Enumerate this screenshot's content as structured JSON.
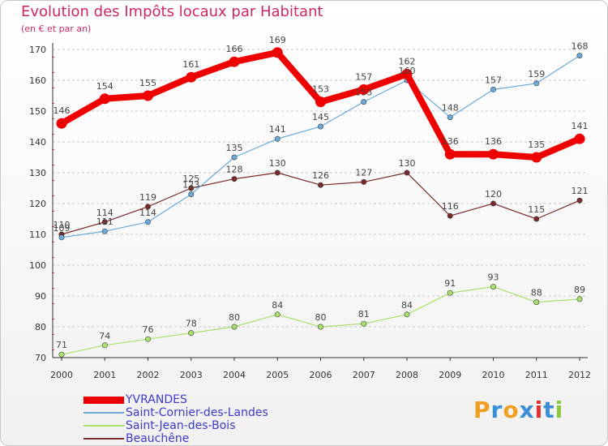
{
  "header": {
    "title": "Evolution des Impôts locaux par Habitant",
    "subtitle": "(en € et par an)"
  },
  "logo": {
    "letters": [
      "P",
      "r",
      "o",
      "x",
      "i",
      "t",
      "i"
    ],
    "colors": [
      "#f0a020",
      "#3a8ed8",
      "#f0a020",
      "#3a8ed8",
      "#e03030",
      "#3a8ed8",
      "#8cc83c"
    ]
  },
  "chart_data": {
    "type": "line",
    "title": "Evolution des Impôts locaux par Habitant",
    "subtitle": "(en € et par an)",
    "xlabel": "",
    "ylabel": "",
    "x": [
      "2000",
      "2001",
      "2002",
      "2003",
      "2004",
      "2005",
      "2006",
      "2007",
      "2008",
      "2009",
      "2010",
      "2011",
      "2012"
    ],
    "ylim": [
      70,
      170
    ],
    "yticks": [
      70,
      80,
      90,
      100,
      110,
      120,
      130,
      140,
      150,
      160,
      170
    ],
    "grid": "horizontal dashed",
    "legend_position": "bottom-left",
    "series": [
      {
        "name": "Beauchêne",
        "color": "#7a2a2a",
        "width": 1.2,
        "values": [
          110,
          114,
          119,
          125,
          128,
          130,
          126,
          127,
          130,
          116,
          120,
          115,
          121
        ],
        "labels": [
          "110",
          "114",
          "119",
          "125",
          "128",
          "130",
          "126",
          "127",
          "130",
          "116",
          "120",
          "115",
          "121"
        ]
      },
      {
        "name": "Saint-Jean-des-Bois",
        "color": "#a8e06c",
        "width": 1.2,
        "values": [
          71,
          74,
          76,
          78,
          80,
          84,
          80,
          81,
          84,
          91,
          93,
          88,
          89
        ],
        "labels": [
          "71",
          "74",
          "76",
          "78",
          "80",
          "84",
          "80",
          "81",
          "84",
          "91",
          "93",
          "88",
          "89"
        ]
      },
      {
        "name": "Saint-Cornier-des-Landes",
        "color": "#6aaad8",
        "width": 1.2,
        "values": [
          109,
          111,
          114,
          123,
          135,
          141,
          145,
          153,
          160,
          148,
          157,
          159,
          168
        ],
        "labels": [
          "109",
          "111",
          "114",
          "123",
          "135",
          "141",
          "145",
          "153",
          "160",
          "148",
          "157",
          "159",
          "168"
        ]
      },
      {
        "name": "YVRANDES",
        "color": "#ee0000",
        "width": 8,
        "values": [
          146,
          154,
          155,
          161,
          166,
          169,
          153,
          157,
          162,
          136,
          136,
          135,
          141
        ],
        "labels": [
          "146",
          "154",
          "155",
          "161",
          "166",
          "169",
          "153",
          "157",
          "162",
          "136",
          "136",
          "135",
          "141"
        ]
      }
    ],
    "legend": [
      "YVRANDES",
      "Saint-Cornier-des-Landes",
      "Saint-Jean-des-Bois",
      "Beauchêne"
    ]
  }
}
